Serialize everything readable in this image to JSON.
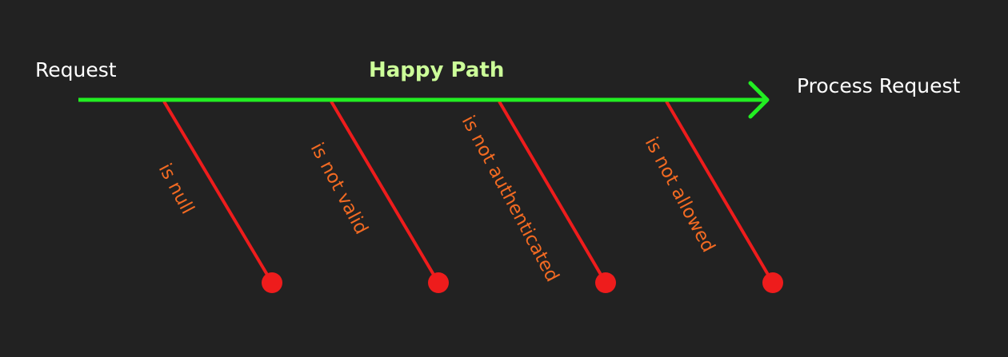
{
  "start_label": "Request",
  "end_label": "Process Request",
  "path_label": "Happy Path",
  "branches": [
    {
      "label": "is null"
    },
    {
      "label": "is not valid"
    },
    {
      "label": "is not authenticated"
    },
    {
      "label": "is not allowed"
    }
  ],
  "colors": {
    "background": "#222222",
    "path": "#22ee22",
    "path_label": "#ccff99",
    "branch": "#ee1c1c",
    "branch_label": "#f26a22",
    "text": "#ffffff"
  }
}
